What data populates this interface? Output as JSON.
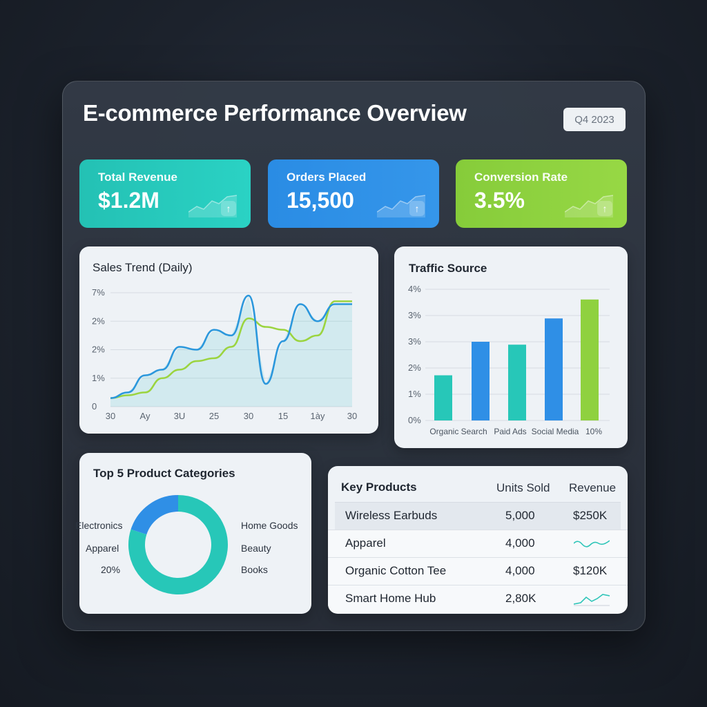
{
  "header": {
    "title": "E-commerce Performance Overview",
    "period": "Q4 2023"
  },
  "kpis": [
    {
      "label": "Total Revenue",
      "value": "$1.2M",
      "color": "#27c7b8"
    },
    {
      "label": "Orders Placed",
      "value": "15,500",
      "color": "#2f8fe6"
    },
    {
      "label": "Conversion Rate",
      "value": "3.5%",
      "color": "#8fd13f"
    }
  ],
  "sales_trend": {
    "title": "Sales Trend (Daily)",
    "y_ticks": [
      "7%",
      "2%",
      "2%",
      "1%",
      "0"
    ],
    "x_ticks": [
      "30",
      "Ay",
      "3U",
      "25",
      "30",
      "15",
      "1ày",
      "30"
    ]
  },
  "traffic": {
    "title": "Traffic Source",
    "y_ticks": [
      "4%",
      "3%",
      "3%",
      "2%",
      "1%",
      "0%"
    ],
    "x_labels": [
      "Organic Search",
      "Paid Ads",
      "Social Media",
      "10%"
    ]
  },
  "categories": {
    "title": "Top 5 Product Categories",
    "left_labels": [
      "Electronics",
      "Apparel",
      "20%"
    ],
    "right_labels": [
      "Home Goods",
      "Beauty",
      "Books"
    ]
  },
  "products": {
    "title": "Key Products",
    "col_units": "Units Sold",
    "col_revenue": "Revenue",
    "rows": [
      {
        "name": "Wireless Earbuds",
        "units": "5,000",
        "revenue": "$250K"
      },
      {
        "name": "Apparel",
        "units": "4,000",
        "revenue": ""
      },
      {
        "name": "Organic Cotton Tee",
        "units": "4,000",
        "revenue": "$120K"
      },
      {
        "name": "Smart Home Hub",
        "units": "2,80K",
        "revenue": ""
      }
    ]
  },
  "chart_data": [
    {
      "type": "area",
      "title": "Sales Trend (Daily)",
      "x": [
        0,
        1,
        2,
        3,
        4,
        5,
        6,
        7,
        8,
        9,
        10,
        11,
        12,
        13,
        14
      ],
      "series": [
        {
          "values": [
            0.3,
            0.5,
            1.1,
            1.3,
            2.1,
            2.0,
            2.7,
            2.5,
            3.9,
            0.8,
            2.3,
            3.6,
            3.0,
            3.6,
            3.6
          ],
          "color": "#2b97dc"
        },
        {
          "values": [
            0.3,
            0.4,
            0.5,
            1.0,
            1.3,
            1.6,
            1.7,
            2.1,
            3.1,
            2.8,
            2.7,
            2.3,
            2.5,
            3.7,
            3.7
          ],
          "color": "#9bd43f"
        }
      ],
      "ylim": [
        0,
        4
      ],
      "grid": true
    },
    {
      "type": "bar",
      "title": "Traffic Source",
      "values": [
        1.55,
        2.7,
        2.6,
        3.5,
        4.15
      ],
      "colors": [
        "#27c7b8",
        "#2f8fe6",
        "#27c7b8",
        "#2f8fe6",
        "#8fd13f"
      ],
      "ylim": [
        0,
        4.5
      ],
      "grid": true
    },
    {
      "type": "pie",
      "title": "Top 5 Product Categories",
      "values": [
        20,
        80
      ],
      "colors": [
        "#2f8fe6",
        "#27c7b8"
      ]
    }
  ]
}
